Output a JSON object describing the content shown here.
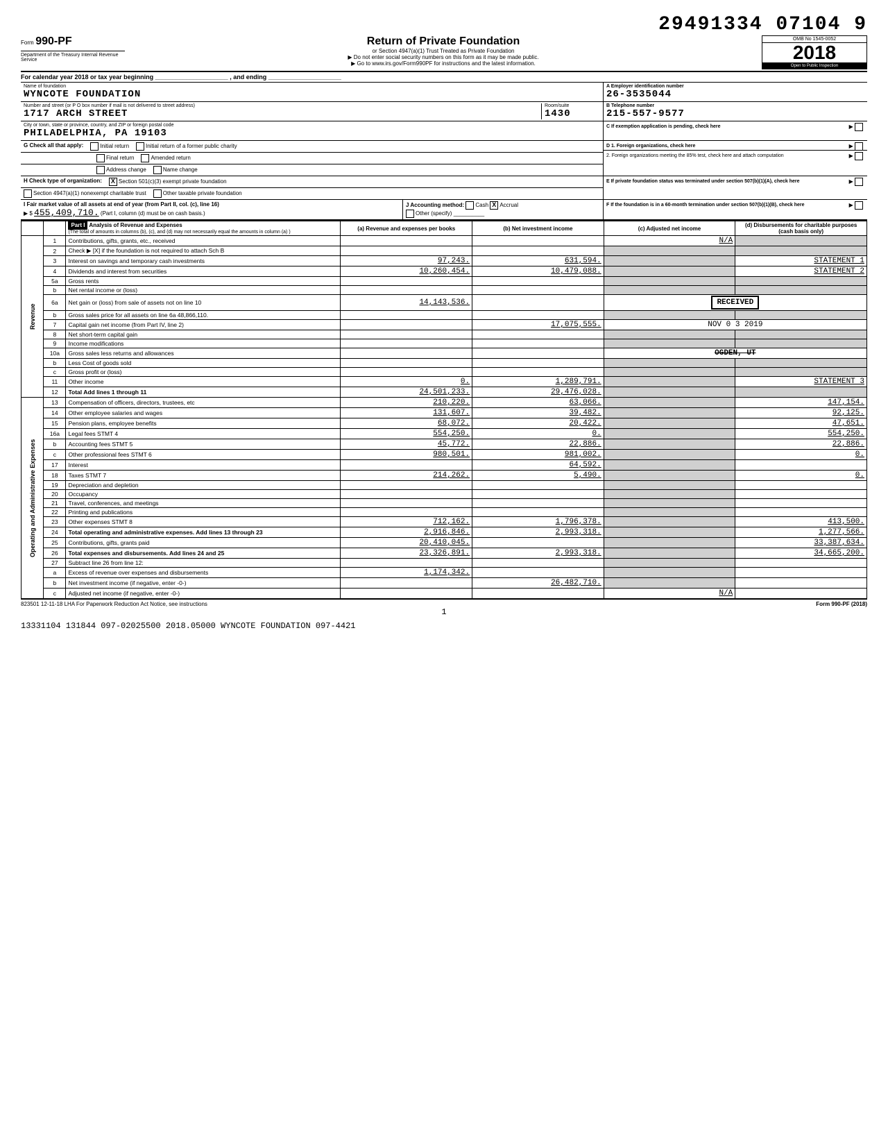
{
  "doc_number": "29491334 07104  9",
  "form": {
    "label": "Form",
    "number": "990-PF",
    "dept": "Department of the Treasury\nInternal Revenue Service"
  },
  "header": {
    "title": "Return of Private Foundation",
    "sub1": "or Section 4947(a)(1) Trust Treated as Private Foundation",
    "sub2": "▶ Do not enter social security numbers on this form as it may be made public.",
    "sub3": "▶ Go to www.irs.gov/Form990PF for instructions and the latest information.",
    "omb": "OMB No  1545-0052",
    "year": "2018",
    "inspection": "Open to Public Inspection"
  },
  "calendar_line": "For calendar year 2018 or tax year beginning _____________________ , and ending _____________________",
  "name_label": "Name of foundation",
  "foundation_name": "WYNCOTE FOUNDATION",
  "street_label": "Number and street (or P O  box number if mail is not delivered to street address)",
  "street": "1717 ARCH STREET",
  "room_label": "Room/suite",
  "room": "1430",
  "city_label": "City or town, state or province, country, and ZIP or foreign postal code",
  "city": "PHILADELPHIA, PA  19103",
  "boxA_label": "A  Employer identification number",
  "ein": "26-3535044",
  "boxB_label": "B  Telephone number",
  "phone": "215-557-9577",
  "boxC_label": "C  If exemption application is pending, check here",
  "boxD1": "D  1. Foreign organizations, check here",
  "boxD2": "2. Foreign organizations meeting the 85% test, check here and attach computation",
  "boxE": "E  If private foundation status was terminated under section 507(b)(1)(A), check here",
  "boxF": "F  If the foundation is in a 60-month termination under section 507(b)(1)(B), check here",
  "G_label": "G  Check all that apply:",
  "G_opts": [
    "Initial return",
    "Final return",
    "Address change",
    "Initial return of a former public charity",
    "Amended return",
    "Name change"
  ],
  "H_label": "H  Check type of organization:",
  "H_opts": [
    "Section 501(c)(3) exempt private foundation",
    "Section 4947(a)(1) nonexempt charitable trust",
    "Other taxable private foundation"
  ],
  "I_label": "I  Fair market value of all assets at end of year (from Part II, col. (c), line 16)",
  "I_value": "455,409,710.",
  "I_note": "(Part I, column (d) must be on cash basis.)",
  "J_label": "J  Accounting method:",
  "J_opts": [
    "Cash",
    "Accrual",
    "Other (specify)"
  ],
  "part1": {
    "title": "Part I",
    "desc": "Analysis of Revenue and Expenses",
    "note": "(The total of amounts in columns (b), (c), and (d) may not necessarily equal the amounts in column (a) )",
    "cols": [
      "(a) Revenue and expenses per books",
      "(b) Net investment income",
      "(c) Adjusted net income",
      "(d) Disbursements for charitable purposes (cash basis only)"
    ]
  },
  "side_labels": {
    "revenue": "Revenue",
    "opadmin": "Operating and Administrative Expenses"
  },
  "received_stamp": "RECEIVED",
  "received_date": "NOV 0 3 2019",
  "ogden": "OGDEN, UT",
  "rows": [
    {
      "n": "1",
      "d": "Contributions, gifts, grants, etc., received",
      "a": "",
      "b": "",
      "c": "N/A",
      "e": ""
    },
    {
      "n": "2",
      "d": "Check ▶ [X]  if the foundation is not required to attach Sch  B",
      "a": "",
      "b": "",
      "c": "",
      "e": ""
    },
    {
      "n": "3",
      "d": "Interest on savings and temporary cash investments",
      "a": "97,243.",
      "b": "631,594.",
      "c": "",
      "e": "STATEMENT 1"
    },
    {
      "n": "4",
      "d": "Dividends and interest from securities",
      "a": "10,260,454.",
      "b": "10,479,088.",
      "c": "",
      "e": "STATEMENT 2"
    },
    {
      "n": "5a",
      "d": "Gross rents",
      "a": "",
      "b": "",
      "c": "",
      "e": ""
    },
    {
      "n": "b",
      "d": "Net rental income or (loss)",
      "a": "",
      "b": "",
      "c": "",
      "e": ""
    },
    {
      "n": "6a",
      "d": "Net gain or (loss) from sale of assets not on line 10",
      "a": "14,143,536.",
      "b": "",
      "c": "",
      "e": ""
    },
    {
      "n": "b",
      "d": "Gross sales price for all assets on line 6a   48,866,110.",
      "a": "",
      "b": "",
      "c": "",
      "e": ""
    },
    {
      "n": "7",
      "d": "Capital gain net income (from Part IV, line 2)",
      "a": "",
      "b": "17,075,555.",
      "c": "",
      "e": ""
    },
    {
      "n": "8",
      "d": "Net short-term capital gain",
      "a": "",
      "b": "",
      "c": "",
      "e": ""
    },
    {
      "n": "9",
      "d": "Income modifications",
      "a": "",
      "b": "",
      "c": "",
      "e": ""
    },
    {
      "n": "10a",
      "d": "Gross sales less returns and allowances",
      "a": "",
      "b": "",
      "c": "",
      "e": ""
    },
    {
      "n": "b",
      "d": "Less Cost of goods sold",
      "a": "",
      "b": "",
      "c": "",
      "e": ""
    },
    {
      "n": "c",
      "d": "Gross profit or (loss)",
      "a": "",
      "b": "",
      "c": "",
      "e": ""
    },
    {
      "n": "11",
      "d": "Other income",
      "a": "0.",
      "b": "1,289,791.",
      "c": "",
      "e": "STATEMENT 3"
    },
    {
      "n": "12",
      "d": "Total  Add lines 1 through 11",
      "a": "24,501,233.",
      "b": "29,476,028.",
      "c": "",
      "e": ""
    },
    {
      "n": "13",
      "d": "Compensation of officers, directors, trustees, etc",
      "a": "210,220.",
      "b": "63,066.",
      "c": "",
      "e": "147,154."
    },
    {
      "n": "14",
      "d": "Other employee salaries and wages",
      "a": "131,607.",
      "b": "39,482.",
      "c": "",
      "e": "92,125."
    },
    {
      "n": "15",
      "d": "Pension plans, employee benefits",
      "a": "68,072.",
      "b": "20,422.",
      "c": "",
      "e": "47,651."
    },
    {
      "n": "16a",
      "d": "Legal fees                          STMT 4",
      "a": "554,250.",
      "b": "0.",
      "c": "",
      "e": "554,250."
    },
    {
      "n": "b",
      "d": "Accounting fees                  STMT 5",
      "a": "45,772.",
      "b": "22,886.",
      "c": "",
      "e": "22,886."
    },
    {
      "n": "c",
      "d": "Other professional fees       STMT 6",
      "a": "980,501.",
      "b": "981,002.",
      "c": "",
      "e": "0."
    },
    {
      "n": "17",
      "d": "Interest",
      "a": "",
      "b": "64,592.",
      "c": "",
      "e": ""
    },
    {
      "n": "18",
      "d": "Taxes                                  STMT 7",
      "a": "214,262.",
      "b": "5,490.",
      "c": "",
      "e": "0."
    },
    {
      "n": "19",
      "d": "Depreciation and depletion",
      "a": "",
      "b": "",
      "c": "",
      "e": ""
    },
    {
      "n": "20",
      "d": "Occupancy",
      "a": "",
      "b": "",
      "c": "",
      "e": ""
    },
    {
      "n": "21",
      "d": "Travel, conferences, and meetings",
      "a": "",
      "b": "",
      "c": "",
      "e": ""
    },
    {
      "n": "22",
      "d": "Printing and publications",
      "a": "",
      "b": "",
      "c": "",
      "e": ""
    },
    {
      "n": "23",
      "d": "Other expenses                  STMT 8",
      "a": "712,162.",
      "b": "1,796,378.",
      "c": "",
      "e": "413,500."
    },
    {
      "n": "24",
      "d": "Total operating and administrative expenses. Add lines 13 through 23",
      "a": "2,916,846.",
      "b": "2,993,318.",
      "c": "",
      "e": "1,277,566."
    },
    {
      "n": "25",
      "d": "Contributions, gifts, grants paid",
      "a": "20,410,045.",
      "b": "",
      "c": "",
      "e": "33,387,634."
    },
    {
      "n": "26",
      "d": "Total expenses and disbursements. Add lines 24 and 25",
      "a": "23,326,891.",
      "b": "2,993,318.",
      "c": "",
      "e": "34,665,200."
    },
    {
      "n": "27",
      "d": "Subtract line 26 from line 12:",
      "a": "",
      "b": "",
      "c": "",
      "e": ""
    },
    {
      "n": "a",
      "d": "Excess of revenue over expenses and disbursements",
      "a": "1,174,342.",
      "b": "",
      "c": "",
      "e": ""
    },
    {
      "n": "b",
      "d": "Net investment income (if negative, enter -0-)",
      "a": "",
      "b": "26,482,710.",
      "c": "",
      "e": ""
    },
    {
      "n": "c",
      "d": "Adjusted net income (if negative, enter -0-)",
      "a": "",
      "b": "",
      "c": "N/A",
      "e": ""
    }
  ],
  "footer_left": "823501  12-11-18   LHA  For Paperwork Reduction Act Notice, see instructions",
  "footer_page": "1",
  "footer_right": "Form 990-PF (2018)",
  "bottom_line": "13331104 131844 097-02025500   2018.05000 WYNCOTE FOUNDATION        097-4421"
}
